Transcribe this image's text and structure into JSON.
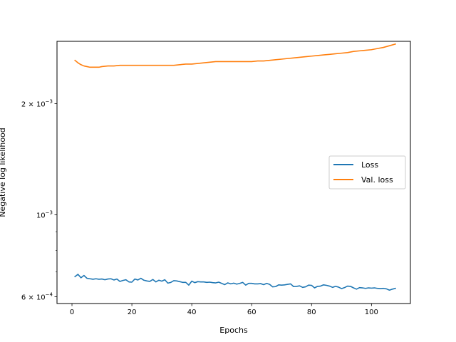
{
  "chart_data": {
    "type": "line",
    "title": "",
    "xlabel": "Epochs",
    "ylabel": "Negative log likelihood",
    "xscale": "linear",
    "yscale": "log",
    "xlim": [
      -5,
      113
    ],
    "ylim": [
      0.000575,
      0.00295
    ],
    "grid": false,
    "legend_position": "center-right",
    "x_ticks": [
      0,
      20,
      40,
      60,
      80,
      100
    ],
    "y_major_ticks": [
      {
        "value": 0.0006,
        "mant": "6",
        "exp": "−4"
      },
      {
        "value": 0.001,
        "mant": "",
        "exp": "−3"
      },
      {
        "value": 0.002,
        "mant": "2",
        "exp": "−3"
      }
    ],
    "y_minor_ticks": [
      0.0007,
      0.0008,
      0.0009
    ],
    "series": [
      {
        "name": "Loss",
        "color": "#1f77b4",
        "x": [
          1,
          2,
          3,
          4,
          5,
          6,
          7,
          8,
          9,
          10,
          11,
          12,
          13,
          14,
          15,
          16,
          17,
          18,
          19,
          20,
          21,
          22,
          23,
          24,
          25,
          26,
          27,
          28,
          29,
          30,
          31,
          32,
          33,
          34,
          35,
          36,
          37,
          38,
          39,
          40,
          41,
          42,
          43,
          44,
          45,
          46,
          47,
          48,
          49,
          50,
          51,
          52,
          53,
          54,
          55,
          56,
          57,
          58,
          59,
          60,
          61,
          62,
          63,
          64,
          65,
          66,
          67,
          68,
          69,
          70,
          71,
          72,
          73,
          74,
          75,
          76,
          77,
          78,
          79,
          80,
          81,
          82,
          83,
          84,
          85,
          86,
          87,
          88,
          89,
          90,
          91,
          92,
          93,
          94,
          95,
          96,
          97,
          98,
          99,
          100,
          101,
          102,
          103,
          104,
          105,
          106,
          107,
          108
        ],
        "values": [
          0.00068,
          0.00069,
          0.000675,
          0.000685,
          0.000673,
          0.000671,
          0.000669,
          0.000671,
          0.000669,
          0.00067,
          0.000667,
          0.00067,
          0.000671,
          0.000666,
          0.00067,
          0.00066,
          0.000664,
          0.000667,
          0.000658,
          0.000657,
          0.00067,
          0.000666,
          0.000673,
          0.000665,
          0.000662,
          0.00066,
          0.000668,
          0.000658,
          0.000665,
          0.000661,
          0.000667,
          0.000653,
          0.000656,
          0.000663,
          0.000662,
          0.000659,
          0.000656,
          0.000656,
          0.000645,
          0.000661,
          0.000655,
          0.000659,
          0.000658,
          0.000658,
          0.000656,
          0.000657,
          0.000655,
          0.000654,
          0.000657,
          0.000652,
          0.000647,
          0.000654,
          0.00065,
          0.000653,
          0.000649,
          0.000652,
          0.000656,
          0.000645,
          0.000652,
          0.000652,
          0.00065,
          0.00065,
          0.000651,
          0.000647,
          0.000652,
          0.000648,
          0.000638,
          0.000639,
          0.000646,
          0.000645,
          0.000646,
          0.000648,
          0.00065,
          0.000639,
          0.00064,
          0.000642,
          0.000636,
          0.000638,
          0.000645,
          0.000644,
          0.000634,
          0.00064,
          0.000641,
          0.000646,
          0.000644,
          0.000641,
          0.000636,
          0.00064,
          0.000637,
          0.000631,
          0.000635,
          0.000641,
          0.00064,
          0.000634,
          0.000629,
          0.000635,
          0.000634,
          0.000632,
          0.000634,
          0.000633,
          0.000634,
          0.000632,
          0.000631,
          0.000632,
          0.00063,
          0.000625,
          0.000629,
          0.000632
        ]
      },
      {
        "name": "Val. loss",
        "color": "#ff7f0e",
        "x": [
          1,
          2,
          3,
          4,
          5,
          6,
          7,
          8,
          9,
          10,
          12,
          14,
          16,
          18,
          20,
          22,
          24,
          26,
          28,
          30,
          32,
          34,
          36,
          38,
          40,
          42,
          44,
          46,
          48,
          50,
          52,
          54,
          56,
          58,
          60,
          62,
          64,
          66,
          68,
          70,
          72,
          74,
          76,
          78,
          80,
          82,
          84,
          86,
          88,
          90,
          92,
          94,
          96,
          98,
          100,
          102,
          104,
          106,
          108
        ],
        "values": [
          0.00262,
          0.00258,
          0.00255,
          0.00253,
          0.00252,
          0.00251,
          0.00251,
          0.00251,
          0.00251,
          0.00252,
          0.00253,
          0.00253,
          0.00254,
          0.00254,
          0.00254,
          0.00254,
          0.00254,
          0.00254,
          0.00254,
          0.00254,
          0.00254,
          0.00254,
          0.00255,
          0.00256,
          0.00256,
          0.00257,
          0.00258,
          0.00259,
          0.0026,
          0.0026,
          0.0026,
          0.0026,
          0.0026,
          0.0026,
          0.0026,
          0.00261,
          0.00261,
          0.00262,
          0.00263,
          0.00264,
          0.00265,
          0.00266,
          0.00267,
          0.00268,
          0.00269,
          0.0027,
          0.00271,
          0.00272,
          0.00273,
          0.00274,
          0.00275,
          0.00277,
          0.00278,
          0.00279,
          0.0028,
          0.00282,
          0.00284,
          0.00287,
          0.0029
        ]
      }
    ]
  }
}
